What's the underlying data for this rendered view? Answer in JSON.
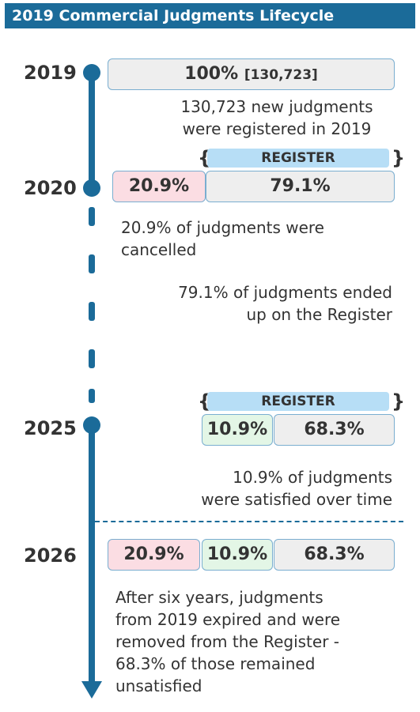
{
  "title": "2019 Commercial Judgments Lifecycle",
  "years": {
    "y2019": "2019",
    "y2020": "2020",
    "y2025": "2025",
    "y2026": "2026"
  },
  "row2019": {
    "main": "100%",
    "count": "[130,723]"
  },
  "row2020": {
    "cancelled": "20.9%",
    "register": "79.1%",
    "register_label": "REGISTER"
  },
  "row2025": {
    "satisfied": "10.9%",
    "register": "68.3%",
    "register_label": "REGISTER"
  },
  "row2026": {
    "cancelled": "20.9%",
    "satisfied": "10.9%",
    "remaining": "68.3%"
  },
  "descriptions": {
    "d2019": [
      "130,723 new judgments",
      "were registered in 2019"
    ],
    "cancelled": [
      "20.9% of judgments were",
      "cancelled"
    ],
    "register": [
      "79.1% of judgments ended",
      "up on the Register"
    ],
    "satisfied": [
      "10.9% of judgments",
      "were satisfied over time"
    ],
    "expired": [
      "After six years, judgments",
      "from 2019 expired and were",
      "removed from the Register -",
      "68.3% of those remained",
      "unsatisfied"
    ]
  },
  "brace_open": "{",
  "brace_close": "}",
  "colors": {
    "accent": "#1b6b99",
    "cancelled": "#fbdde3",
    "satisfied": "#e3f6e6",
    "register_band": "#b7def6",
    "neutral": "#eeeeee"
  }
}
